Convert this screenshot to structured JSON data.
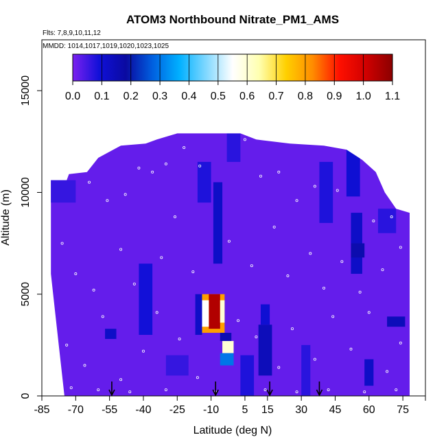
{
  "chart_data": {
    "type": "heatmap",
    "title": "ATOM3 Northbound Nitrate_PM1_AMS",
    "subtitle_flights": "Flts: 7,8,9,10,11,12",
    "subtitle_dates": "MMDD: 1014,1017,1019,1020,1023,1025",
    "xlabel": "Latitude (deg N)",
    "ylabel": "Altitude (m)",
    "xlim": [
      -85,
      85
    ],
    "ylim": [
      0,
      17500
    ],
    "x_ticks": [
      -85,
      -70,
      -55,
      -40,
      -25,
      -10,
      5,
      15,
      30,
      45,
      60,
      75
    ],
    "x_tick_labels": [
      "-85",
      "-70",
      "-55",
      "-40",
      "-25",
      "-10",
      "5",
      "15",
      "30",
      "45",
      "60",
      "75"
    ],
    "y_ticks": [
      0,
      5000,
      10000,
      15000
    ],
    "y_tick_labels": [
      "0",
      "5000",
      "10000",
      "15000"
    ],
    "colorbar": {
      "ticks": [
        0.0,
        0.1,
        0.2,
        0.3,
        0.4,
        0.5,
        0.6,
        0.7,
        0.8,
        0.9,
        1.0,
        1.1
      ],
      "tick_labels": [
        "0.0",
        "0.1",
        "0.2",
        "0.3",
        "0.4",
        "0.5",
        "0.6",
        "0.7",
        "0.8",
        "0.9",
        "1.0",
        "1.1"
      ],
      "range": [
        0,
        1.1
      ],
      "colors": [
        "#7b21f0",
        "#1010d8",
        "#0a0aa0",
        "#0060e0",
        "#00b0ff",
        "#80d8ff",
        "#ffffff",
        "#ffffb0",
        "#ffd000",
        "#ff8c00",
        "#ff1000",
        "#d00000",
        "#8b0000"
      ]
    },
    "background_value": 0.02,
    "ceiling_profile": [
      {
        "x": -81,
        "y": 10600
      },
      {
        "x": -74,
        "y": 10600
      },
      {
        "x": -73,
        "y": 10900
      },
      {
        "x": -65,
        "y": 11000
      },
      {
        "x": -60,
        "y": 11700
      },
      {
        "x": -55,
        "y": 12000
      },
      {
        "x": -50,
        "y": 12300
      },
      {
        "x": -39,
        "y": 12400
      },
      {
        "x": -34,
        "y": 12600
      },
      {
        "x": -25,
        "y": 12900
      },
      {
        "x": 3,
        "y": 12900
      },
      {
        "x": 10,
        "y": 12600
      },
      {
        "x": 25,
        "y": 12400
      },
      {
        "x": 40,
        "y": 12300
      },
      {
        "x": 50,
        "y": 12100
      },
      {
        "x": 57,
        "y": 11600
      },
      {
        "x": 63,
        "y": 11000
      },
      {
        "x": 67,
        "y": 10000
      },
      {
        "x": 72,
        "y": 9200
      },
      {
        "x": 78,
        "y": 9000
      }
    ],
    "floor_left_profile": [
      {
        "x": -81,
        "y": 9800
      },
      {
        "x": -81,
        "y": 6000
      },
      {
        "x": -79,
        "y": 4000
      },
      {
        "x": -77,
        "y": 2000
      },
      {
        "x": -75,
        "y": 0
      }
    ],
    "right_edge_x": 78,
    "cells": [
      {
        "x0": -14,
        "x1": -4,
        "y0": 3100,
        "y1": 5000,
        "v": 0.8
      },
      {
        "x0": -11,
        "x1": -6,
        "y0": 3300,
        "y1": 5000,
        "v": 1.05
      },
      {
        "x0": -14,
        "x1": -11,
        "y0": 3400,
        "y1": 4700,
        "v": 0.55
      },
      {
        "x0": -6,
        "x1": -4,
        "y0": 3600,
        "y1": 4700,
        "v": 0.6
      },
      {
        "x0": -5,
        "x1": 0,
        "y0": 2100,
        "y1": 2700,
        "v": 0.6
      },
      {
        "x0": -6,
        "x1": 0,
        "y0": 1500,
        "y1": 2100,
        "v": 0.3
      },
      {
        "x0": -6,
        "x1": -1,
        "y0": 2700,
        "y1": 3100,
        "v": 0.15
      },
      {
        "x0": -17,
        "x1": -14,
        "y0": 3000,
        "y1": 5000,
        "v": 0.12
      },
      {
        "x0": -9,
        "x1": -5,
        "y0": 6500,
        "y1": 10500,
        "v": 0.12
      },
      {
        "x0": -16,
        "x1": -10,
        "y0": 9500,
        "y1": 11500,
        "v": 0.08
      },
      {
        "x0": 11,
        "x1": 17,
        "y0": 1000,
        "y1": 3500,
        "v": 0.14
      },
      {
        "x0": 12,
        "x1": 16,
        "y0": 3500,
        "y1": 4500,
        "v": 0.1
      },
      {
        "x0": -42,
        "x1": -36,
        "y0": 3000,
        "y1": 6500,
        "v": 0.09
      },
      {
        "x0": -57,
        "x1": -52,
        "y0": 2800,
        "y1": 3300,
        "v": 0.12
      },
      {
        "x0": 52,
        "x1": 57,
        "y0": 6000,
        "y1": 9000,
        "v": 0.12
      },
      {
        "x0": 52,
        "x1": 58,
        "y0": 6800,
        "y1": 7500,
        "v": 0.16
      },
      {
        "x0": 68,
        "x1": 76,
        "y0": 3400,
        "y1": 3900,
        "v": 0.14
      },
      {
        "x0": 58,
        "x1": 62,
        "y0": 500,
        "y1": 1800,
        "v": 0.12
      },
      {
        "x0": 50,
        "x1": 56,
        "y0": 9800,
        "y1": 12200,
        "v": 0.1
      },
      {
        "x0": 38,
        "x1": 44,
        "y0": 8500,
        "y1": 11500,
        "v": 0.08
      },
      {
        "x0": 3,
        "x1": 9,
        "y0": 0,
        "y1": 2000,
        "v": 0.08
      },
      {
        "x0": -82,
        "x1": -70,
        "y0": 9500,
        "y1": 10600,
        "v": 0.06
      },
      {
        "x0": -3,
        "x1": 3,
        "y0": 11500,
        "y1": 12900,
        "v": 0.07
      },
      {
        "x0": 30,
        "x1": 34,
        "y0": 0,
        "y1": 2500,
        "v": 0.07
      },
      {
        "x0": -30,
        "x1": -20,
        "y0": 1000,
        "y1": 2000,
        "v": 0.06
      },
      {
        "x0": 64,
        "x1": 72,
        "y0": 8000,
        "y1": 9200,
        "v": 0.07
      }
    ],
    "sample_points": [
      {
        "x": -64,
        "y": 10500
      },
      {
        "x": -60,
        "y": 11900
      },
      {
        "x": -56,
        "y": 9600
      },
      {
        "x": -48,
        "y": 9900
      },
      {
        "x": -42,
        "y": 11200
      },
      {
        "x": -36,
        "y": 11000
      },
      {
        "x": -30,
        "y": 11400
      },
      {
        "x": -22,
        "y": 12200
      },
      {
        "x": -15,
        "y": 11300
      },
      {
        "x": 5,
        "y": 12600
      },
      {
        "x": 12,
        "y": 10800
      },
      {
        "x": 20,
        "y": 11000
      },
      {
        "x": 28,
        "y": 9600
      },
      {
        "x": 36,
        "y": 10300
      },
      {
        "x": 46,
        "y": 10100
      },
      {
        "x": 55,
        "y": 12000
      },
      {
        "x": 62,
        "y": 8600
      },
      {
        "x": 70,
        "y": 8800
      },
      {
        "x": -76,
        "y": 7500
      },
      {
        "x": -70,
        "y": 6000
      },
      {
        "x": -62,
        "y": 5200
      },
      {
        "x": -50,
        "y": 7200
      },
      {
        "x": -44,
        "y": 5500
      },
      {
        "x": -32,
        "y": 6800
      },
      {
        "x": -26,
        "y": 8800
      },
      {
        "x": -18,
        "y": 6100
      },
      {
        "x": -2,
        "y": 7600
      },
      {
        "x": 8,
        "y": 6400
      },
      {
        "x": 18,
        "y": 8300
      },
      {
        "x": 24,
        "y": 5900
      },
      {
        "x": 34,
        "y": 7000
      },
      {
        "x": 40,
        "y": 5300
      },
      {
        "x": 48,
        "y": 6600
      },
      {
        "x": 56,
        "y": 5100
      },
      {
        "x": 66,
        "y": 6200
      },
      {
        "x": 74,
        "y": 7300
      },
      {
        "x": -74,
        "y": 2500
      },
      {
        "x": -66,
        "y": 1500
      },
      {
        "x": -58,
        "y": 3900
      },
      {
        "x": -50,
        "y": 800
      },
      {
        "x": -40,
        "y": 2200
      },
      {
        "x": -34,
        "y": 4100
      },
      {
        "x": -24,
        "y": 2800
      },
      {
        "x": -16,
        "y": 900
      },
      {
        "x": 2,
        "y": 3700
      },
      {
        "x": 10,
        "y": 2900
      },
      {
        "x": 20,
        "y": 1400
      },
      {
        "x": 26,
        "y": 3300
      },
      {
        "x": 36,
        "y": 1800
      },
      {
        "x": 44,
        "y": 3900
      },
      {
        "x": 52,
        "y": 2300
      },
      {
        "x": 60,
        "y": 4100
      },
      {
        "x": 68,
        "y": 1200
      },
      {
        "x": 74,
        "y": 2600
      },
      {
        "x": -72,
        "y": 400
      },
      {
        "x": -60,
        "y": 300
      },
      {
        "x": -46,
        "y": 200
      },
      {
        "x": -30,
        "y": 300
      },
      {
        "x": -8,
        "y": 200
      },
      {
        "x": 14,
        "y": 300
      },
      {
        "x": 28,
        "y": 200
      },
      {
        "x": 42,
        "y": 300
      },
      {
        "x": 58,
        "y": 200
      },
      {
        "x": 72,
        "y": 300
      }
    ],
    "arrows_x": [
      -54,
      -8,
      16,
      38
    ]
  }
}
